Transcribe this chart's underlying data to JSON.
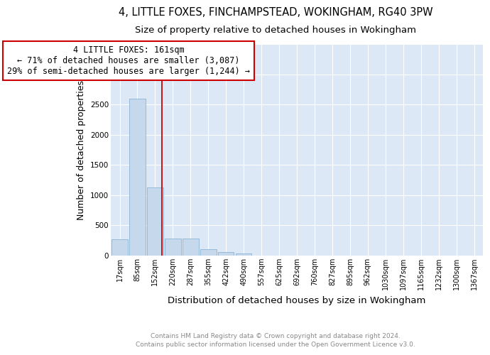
{
  "title": "4, LITTLE FOXES, FINCHAMPSTEAD, WOKINGHAM, RG40 3PW",
  "subtitle": "Size of property relative to detached houses in Wokingham",
  "xlabel": "Distribution of detached houses by size in Wokingham",
  "ylabel": "Number of detached properties",
  "footer_line1": "Contains HM Land Registry data © Crown copyright and database right 2024.",
  "footer_line2": "Contains public sector information licensed under the Open Government Licence v3.0.",
  "categories": [
    "17sqm",
    "85sqm",
    "152sqm",
    "220sqm",
    "287sqm",
    "355sqm",
    "422sqm",
    "490sqm",
    "557sqm",
    "625sqm",
    "692sqm",
    "760sqm",
    "827sqm",
    "895sqm",
    "962sqm",
    "1030sqm",
    "1097sqm",
    "1165sqm",
    "1232sqm",
    "1300sqm",
    "1367sqm"
  ],
  "values": [
    270,
    2600,
    1130,
    280,
    280,
    100,
    55,
    35,
    0,
    0,
    0,
    0,
    0,
    0,
    0,
    0,
    0,
    0,
    0,
    0,
    0
  ],
  "bar_color": "#c5d8ec",
  "bar_edgecolor": "#8ab4d4",
  "vline_x": 2.38,
  "vline_color": "#cc0000",
  "annotation_line1": "4 LITTLE FOXES: 161sqm",
  "annotation_line2": "← 71% of detached houses are smaller (3,087)",
  "annotation_line3": "29% of semi-detached houses are larger (1,244) →",
  "annotation_box_color": "#cc0000",
  "ylim": [
    0,
    3500
  ],
  "yticks": [
    0,
    500,
    1000,
    1500,
    2000,
    2500,
    3000,
    3500
  ],
  "bg_color": "#dce8f5",
  "grid_color": "#ffffff",
  "title_fontsize": 10.5,
  "subtitle_fontsize": 9.5,
  "ylabel_fontsize": 9,
  "xlabel_fontsize": 9.5,
  "tick_fontsize": 7,
  "footer_fontsize": 6.5,
  "annotation_fontsize": 8.5
}
